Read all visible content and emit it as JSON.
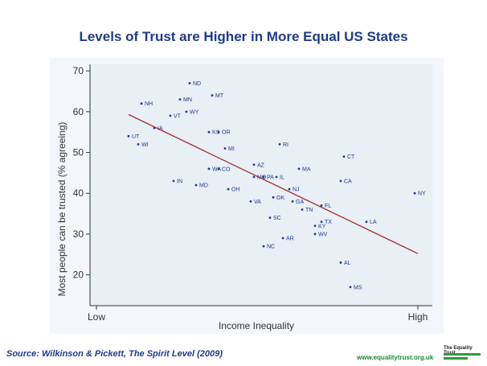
{
  "title": "Levels of Trust are Higher in More Equal US States",
  "source": "Source: Wilkinson & Pickett, The Spirit Level (2009)",
  "website": "www.equalitytrust.org.uk",
  "logo_text": "The Equality Trust",
  "colors": {
    "title": "#1f3a8a",
    "plot_bg": "#e8eff5",
    "trend_line": "#a33030",
    "points": "#1f3a8a",
    "brand_green": "#2f9a3a"
  },
  "chart_data": {
    "type": "scatter",
    "xlabel": "Income Inequality",
    "ylabel": "Most people can be trusted (% agreeing)",
    "x_tick_labels": [
      "Low",
      "High"
    ],
    "xlim": [
      0,
      100
    ],
    "ylim": [
      15,
      72
    ],
    "y_ticks": [
      20,
      30,
      40,
      50,
      60,
      70
    ],
    "grid": false,
    "points": [
      {
        "label": "ND",
        "x": 29,
        "y": 67
      },
      {
        "label": "MT",
        "x": 36,
        "y": 64
      },
      {
        "label": "NH",
        "x": 14,
        "y": 62
      },
      {
        "label": "MN",
        "x": 26,
        "y": 63
      },
      {
        "label": "VT",
        "x": 23,
        "y": 59
      },
      {
        "label": "WY",
        "x": 28,
        "y": 60
      },
      {
        "label": "IA",
        "x": 18,
        "y": 56
      },
      {
        "label": "KS",
        "x": 35,
        "y": 55
      },
      {
        "label": "OR",
        "x": 38,
        "y": 55
      },
      {
        "label": "UT",
        "x": 10,
        "y": 54
      },
      {
        "label": "WI",
        "x": 13,
        "y": 52
      },
      {
        "label": "MI",
        "x": 40,
        "y": 51
      },
      {
        "label": "RI",
        "x": 57,
        "y": 52
      },
      {
        "label": "CT",
        "x": 77,
        "y": 49
      },
      {
        "label": "WA",
        "x": 35,
        "y": 46
      },
      {
        "label": "AZ",
        "x": 49,
        "y": 47
      },
      {
        "label": "CO",
        "x": 38,
        "y": 46
      },
      {
        "label": "MA",
        "x": 63,
        "y": 46
      },
      {
        "label": "PA",
        "x": 52,
        "y": 44
      },
      {
        "label": "MO",
        "x": 49,
        "y": 44
      },
      {
        "label": "IL",
        "x": 56,
        "y": 44
      },
      {
        "label": "IN",
        "x": 24,
        "y": 43
      },
      {
        "label": "CA",
        "x": 76,
        "y": 43
      },
      {
        "label": "MD",
        "x": 31,
        "y": 42
      },
      {
        "label": "OH",
        "x": 41,
        "y": 41
      },
      {
        "label": "NJ",
        "x": 60,
        "y": 41
      },
      {
        "label": "NY",
        "x": 99,
        "y": 40
      },
      {
        "label": "OK",
        "x": 55,
        "y": 39
      },
      {
        "label": "VA",
        "x": 48,
        "y": 38
      },
      {
        "label": "GA",
        "x": 61,
        "y": 38
      },
      {
        "label": "FL",
        "x": 70,
        "y": 37
      },
      {
        "label": "TN",
        "x": 64,
        "y": 36
      },
      {
        "label": "SC",
        "x": 54,
        "y": 34
      },
      {
        "label": "LA",
        "x": 84,
        "y": 33
      },
      {
        "label": "TX",
        "x": 70,
        "y": 33
      },
      {
        "label": "KY",
        "x": 68,
        "y": 32
      },
      {
        "label": "WV",
        "x": 68,
        "y": 30
      },
      {
        "label": "AR",
        "x": 58,
        "y": 29
      },
      {
        "label": "NC",
        "x": 52,
        "y": 27
      },
      {
        "label": "AL",
        "x": 76,
        "y": 23
      },
      {
        "label": "MS",
        "x": 79,
        "y": 17
      }
    ],
    "trend_line": {
      "x": [
        10,
        100
      ],
      "y": [
        59.3,
        25.2
      ]
    }
  }
}
